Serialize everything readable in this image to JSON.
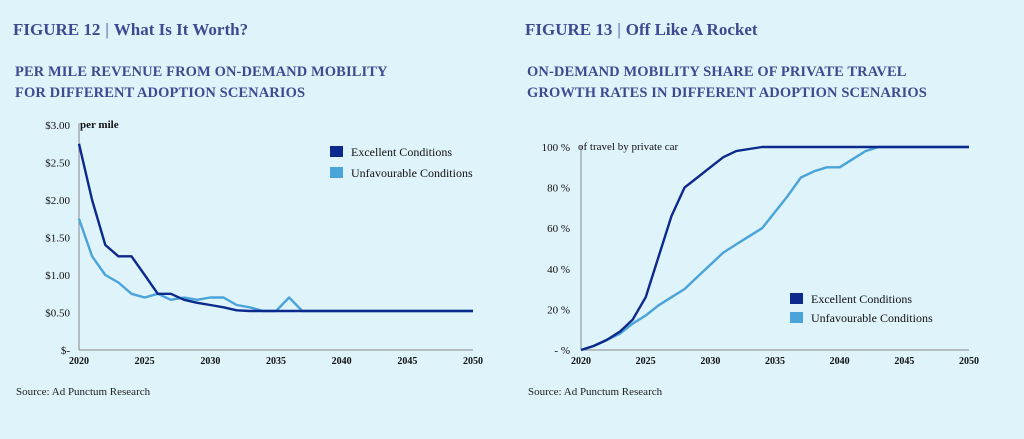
{
  "figures": [
    {
      "figure_label": "FIGURE 12",
      "figure_name": "What Is It Worth?",
      "title_line1": "PER MILE REVENUE FROM ON-DEMAND MOBILITY",
      "title_line2": "FOR DIFFERENT ADOPTION SCENARIOS",
      "source": "Source: Ad Punctum Research"
    },
    {
      "figure_label": "FIGURE 13",
      "figure_name": "Off Like A Rocket",
      "title_line1": "ON-DEMAND MOBILITY SHARE OF PRIVATE TRAVEL",
      "title_line2": "GROWTH RATES IN DIFFERENT ADOPTION SCENARIOS",
      "source": "Source: Ad Punctum Research"
    }
  ],
  "colors": {
    "excellent": "#0b2a8c",
    "unfavourable": "#4aa3d9",
    "title": "#3d4a8f",
    "background": "#dff3fb"
  },
  "chart_data": [
    {
      "type": "line",
      "title": "PER MILE REVENUE FROM ON-DEMAND MOBILITY FOR DIFFERENT ADOPTION SCENARIOS",
      "unit_label": "per mile",
      "xlim": [
        2020,
        2050
      ],
      "ylim": [
        0,
        3
      ],
      "xticks": [
        "2020",
        "2025",
        "2030",
        "2035",
        "2040",
        "2045",
        "2050"
      ],
      "yticks": [
        {
          "value": 0,
          "label": "$-"
        },
        {
          "value": 0.5,
          "label": "$0.50"
        },
        {
          "value": 1.0,
          "label": "$1.00"
        },
        {
          "value": 1.5,
          "label": "$1.50"
        },
        {
          "value": 2.0,
          "label": "$2.00"
        },
        {
          "value": 2.5,
          "label": "$2.50"
        },
        {
          "value": 3.0,
          "label": "$3.00"
        }
      ],
      "legend_position": "top-right",
      "series": [
        {
          "name": "Excellent Conditions",
          "color_key": "excellent",
          "x": [
            2020,
            2021,
            2022,
            2023,
            2024,
            2025,
            2026,
            2027,
            2028,
            2029,
            2030,
            2031,
            2032,
            2033,
            2034,
            2035,
            2036,
            2037,
            2040,
            2045,
            2050
          ],
          "y": [
            2.75,
            2.0,
            1.4,
            1.25,
            1.25,
            1.0,
            0.75,
            0.75,
            0.67,
            0.63,
            0.6,
            0.57,
            0.53,
            0.52,
            0.52,
            0.52,
            0.52,
            0.52,
            0.52,
            0.52,
            0.52
          ]
        },
        {
          "name": "Unfavourable Conditions",
          "color_key": "unfavourable",
          "x": [
            2020,
            2021,
            2022,
            2023,
            2024,
            2025,
            2026,
            2027,
            2028,
            2029,
            2030,
            2031,
            2032,
            2033,
            2034,
            2035,
            2036,
            2037,
            2040,
            2045,
            2050
          ],
          "y": [
            1.75,
            1.25,
            1.0,
            0.9,
            0.75,
            0.7,
            0.75,
            0.67,
            0.7,
            0.67,
            0.7,
            0.7,
            0.6,
            0.57,
            0.52,
            0.52,
            0.7,
            0.52,
            0.52,
            0.52,
            0.52
          ]
        }
      ]
    },
    {
      "type": "line",
      "title": "ON-DEMAND MOBILITY SHARE OF PRIVATE TRAVEL GROWTH RATES IN DIFFERENT ADOPTION SCENARIOS",
      "unit_label": "of travel by private car",
      "xlim": [
        2020,
        2050
      ],
      "ylim": [
        0,
        100
      ],
      "xticks": [
        "2020",
        "2025",
        "2030",
        "2035",
        "2040",
        "2045",
        "2050"
      ],
      "yticks": [
        {
          "value": 0,
          "label": "- %"
        },
        {
          "value": 20,
          "label": "20 %"
        },
        {
          "value": 40,
          "label": "40 %"
        },
        {
          "value": 60,
          "label": "60 %"
        },
        {
          "value": 80,
          "label": "80 %"
        },
        {
          "value": 100,
          "label": "100 %"
        }
      ],
      "legend_position": "bottom-right",
      "series": [
        {
          "name": "Excellent Conditions",
          "color_key": "excellent",
          "x": [
            2020,
            2021,
            2022,
            2023,
            2024,
            2025,
            2026,
            2027,
            2028,
            2029,
            2030,
            2031,
            2032,
            2033,
            2034,
            2035,
            2040,
            2045,
            2050
          ],
          "y": [
            0,
            2,
            5,
            9,
            15,
            26,
            46,
            66,
            80,
            85,
            90,
            95,
            98,
            99,
            100,
            100,
            100,
            100,
            100
          ]
        },
        {
          "name": "Unfavourable Conditions",
          "color_key": "unfavourable",
          "x": [
            2020,
            2021,
            2022,
            2023,
            2024,
            2025,
            2026,
            2027,
            2028,
            2029,
            2030,
            2031,
            2032,
            2033,
            2034,
            2035,
            2036,
            2037,
            2038,
            2039,
            2040,
            2041,
            2042,
            2043,
            2044,
            2045,
            2050
          ],
          "y": [
            0,
            2,
            5,
            8,
            13,
            17,
            22,
            26,
            30,
            36,
            42,
            48,
            52,
            56,
            60,
            68,
            76,
            85,
            88,
            90,
            90,
            94,
            98,
            100,
            100,
            100,
            100
          ]
        }
      ]
    }
  ]
}
